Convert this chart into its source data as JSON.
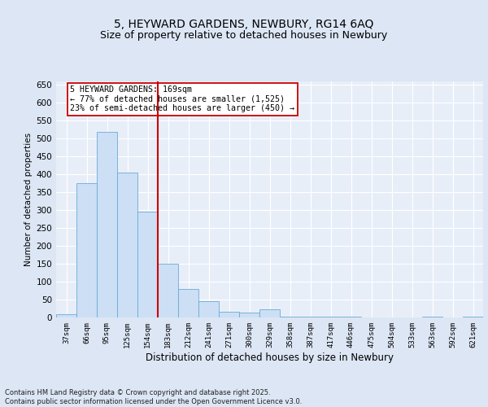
{
  "title_line1": "5, HEYWARD GARDENS, NEWBURY, RG14 6AQ",
  "title_line2": "Size of property relative to detached houses in Newbury",
  "xlabel": "Distribution of detached houses by size in Newbury",
  "ylabel": "Number of detached properties",
  "categories": [
    "37sqm",
    "66sqm",
    "95sqm",
    "125sqm",
    "154sqm",
    "183sqm",
    "212sqm",
    "241sqm",
    "271sqm",
    "300sqm",
    "329sqm",
    "358sqm",
    "387sqm",
    "417sqm",
    "446sqm",
    "475sqm",
    "504sqm",
    "533sqm",
    "563sqm",
    "592sqm",
    "621sqm"
  ],
  "values": [
    10,
    375,
    520,
    405,
    295,
    150,
    80,
    45,
    15,
    13,
    22,
    3,
    3,
    3,
    3,
    0,
    0,
    0,
    3,
    0,
    3
  ],
  "bar_color": "#ccdff5",
  "bar_edge_color": "#6aabd6",
  "vline_x_index": 4.5,
  "vline_color": "#cc0000",
  "annotation_text": "5 HEYWARD GARDENS: 169sqm\n← 77% of detached houses are smaller (1,525)\n23% of semi-detached houses are larger (450) →",
  "annotation_box_color": "#ffffff",
  "annotation_box_edge": "#cc0000",
  "ylim": [
    0,
    660
  ],
  "yticks": [
    0,
    50,
    100,
    150,
    200,
    250,
    300,
    350,
    400,
    450,
    500,
    550,
    600,
    650
  ],
  "footnote": "Contains HM Land Registry data © Crown copyright and database right 2025.\nContains public sector information licensed under the Open Government Licence v3.0.",
  "background_color": "#dce6f5",
  "plot_bg_color": "#e8eef8",
  "grid_color": "#ffffff",
  "title_fontsize": 10,
  "subtitle_fontsize": 9
}
